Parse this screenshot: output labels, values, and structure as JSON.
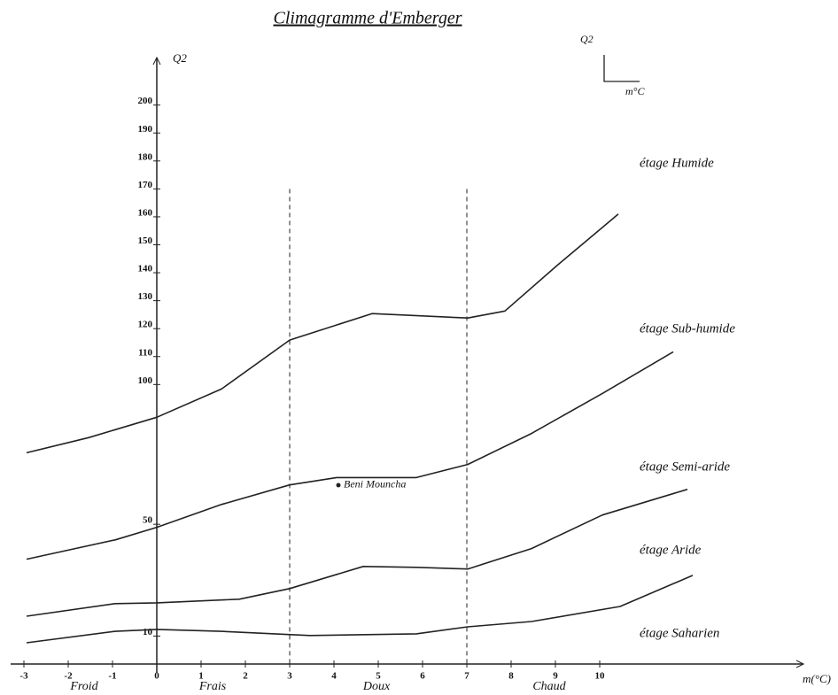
{
  "chart_data": {
    "type": "line",
    "title": "Climagramme d'Emberger",
    "x_label": "m(°C)",
    "y_label": "Q2",
    "inset_labels": [
      "Q2",
      "m°C"
    ],
    "xlim": [
      -3.3,
      14.6
    ],
    "ylim": [
      0,
      217
    ],
    "xticks": [
      -3,
      -2,
      -1,
      0,
      1,
      2,
      3,
      4,
      5,
      6,
      7,
      8,
      9,
      10
    ],
    "yticks": [
      10,
      50,
      100,
      110,
      120,
      130,
      140,
      150,
      160,
      170,
      180,
      190,
      200
    ],
    "vlines": [
      3,
      7
    ],
    "vline_top": 170,
    "zones": [
      "Froid",
      "Frais",
      "Doux",
      "Chaud"
    ],
    "stages": [
      "étage Humide",
      "étage Sub-humide",
      "étage Semi-aride",
      "étage Aride",
      "étage Saharien"
    ],
    "color": "#222222",
    "series": [
      {
        "x": [
          -2.94,
          -1.54,
          0,
          1.46,
          3,
          4.86,
          7.02,
          7.86,
          9.06,
          10.42
        ],
        "values": [
          75.6,
          81,
          88.3,
          98.4,
          115.9,
          125.4,
          123.8,
          126.3,
          142.9,
          161
        ]
      },
      {
        "x": [
          -2.94,
          -0.94,
          0,
          1.46,
          3,
          4.06,
          5.86,
          7.02,
          8.46,
          10.06,
          11.66
        ],
        "values": [
          37.5,
          44.4,
          48.9,
          57.1,
          64.1,
          66.7,
          66.7,
          71.4,
          82.5,
          96.8,
          111.7
        ]
      },
      {
        "x": [
          -2.94,
          -0.94,
          0,
          1.86,
          3,
          4.66,
          5.86,
          7.02,
          8.46,
          10.06,
          11.98
        ],
        "values": [
          17.1,
          21.6,
          21.9,
          23.2,
          27,
          34.9,
          34.6,
          34,
          41.3,
          53.3,
          62.5
        ]
      },
      {
        "x": [
          -2.94,
          -0.94,
          0,
          1.46,
          3.46,
          5.86,
          7.02,
          8.46,
          10.46,
          12.1
        ],
        "values": [
          7.6,
          11.7,
          12.4,
          11.7,
          10.2,
          10.8,
          13.3,
          15.2,
          20.6,
          31.7
        ]
      }
    ],
    "annotation": {
      "text": "Beni Mouncha",
      "x": 4.1,
      "y": 64
    }
  }
}
